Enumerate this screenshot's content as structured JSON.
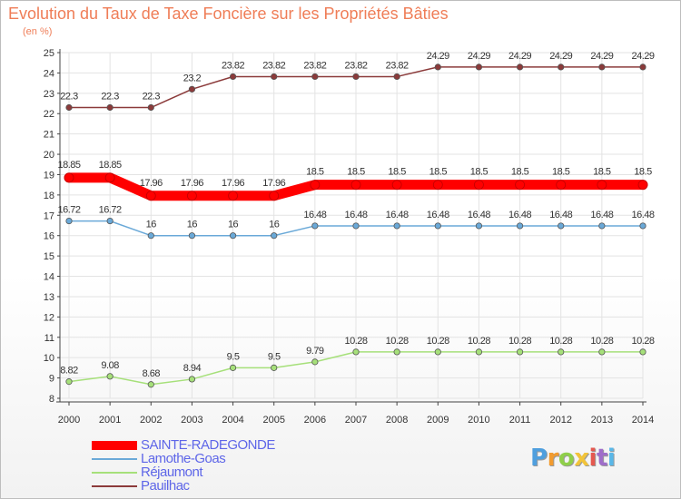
{
  "chart_data": {
    "type": "line",
    "title": "Evolution du Taux de Taxe Foncière sur les Propriétés Bâties",
    "unit_label": "(en %)",
    "x": [
      "2000",
      "2001",
      "2002",
      "2003",
      "2004",
      "2005",
      "2006",
      "2007",
      "2008",
      "2009",
      "2010",
      "2011",
      "2012",
      "2013",
      "2014"
    ],
    "ylim": [
      8,
      25
    ],
    "yticks": [
      "8",
      "9",
      "10",
      "11",
      "12",
      "13",
      "14",
      "15",
      "16",
      "17",
      "18",
      "19",
      "20",
      "21",
      "22",
      "23",
      "24",
      "25"
    ],
    "series": [
      {
        "name": "SAINTE-RADEGONDE",
        "color": "#ff0000",
        "values": [
          18.85,
          18.85,
          17.96,
          17.96,
          17.96,
          17.96,
          18.5,
          18.5,
          18.5,
          18.5,
          18.5,
          18.5,
          18.5,
          18.5,
          18.5
        ],
        "labels": [
          "18.85",
          "18.85",
          "17.96",
          "17.96",
          "17.96",
          "17.96",
          "18.5",
          "18.5",
          "18.5",
          "18.5",
          "18.5",
          "18.5",
          "18.5",
          "18.5",
          "18.5"
        ]
      },
      {
        "name": "Lamothe-Goas",
        "color": "#6aa9d8",
        "values": [
          16.72,
          16.72,
          16,
          16,
          16,
          16,
          16.48,
          16.48,
          16.48,
          16.48,
          16.48,
          16.48,
          16.48,
          16.48,
          16.48
        ],
        "labels": [
          "16.72",
          "16.72",
          "16",
          "16",
          "16",
          "16",
          "16.48",
          "16.48",
          "16.48",
          "16.48",
          "16.48",
          "16.48",
          "16.48",
          "16.48",
          "16.48"
        ]
      },
      {
        "name": "Réjaumont",
        "color": "#a6e07a",
        "values": [
          8.82,
          9.08,
          8.68,
          8.94,
          9.5,
          9.5,
          9.79,
          10.28,
          10.28,
          10.28,
          10.28,
          10.28,
          10.28,
          10.28,
          10.28
        ],
        "labels": [
          "8.82",
          "9.08",
          "8.68",
          "8.94",
          "9.5",
          "9.5",
          "9.79",
          "10.28",
          "10.28",
          "10.28",
          "10.28",
          "10.28",
          "10.28",
          "10.28",
          "10.28"
        ]
      },
      {
        "name": "Pauilhac",
        "color": "#8b3a3a",
        "values": [
          22.3,
          22.3,
          22.3,
          23.2,
          23.82,
          23.82,
          23.82,
          23.82,
          23.82,
          24.29,
          24.29,
          24.29,
          24.29,
          24.29,
          24.29
        ],
        "labels": [
          "22.3",
          "22.3",
          "22.3",
          "23.2",
          "23.82",
          "23.82",
          "23.82",
          "23.82",
          "23.82",
          "24.29",
          "24.29",
          "24.29",
          "24.29",
          "24.29",
          "24.29"
        ]
      }
    ]
  },
  "legend": {
    "items": [
      {
        "label": "SAINTE-RADEGONDE",
        "color": "#ff0000"
      },
      {
        "label": "Lamothe-Goas",
        "color": "#6aa9d8"
      },
      {
        "label": "Réjaumont",
        "color": "#a6e07a"
      },
      {
        "label": "Pauilhac",
        "color": "#8b3a3a"
      }
    ]
  },
  "brand": {
    "letters": [
      "P",
      "r",
      "o",
      "x",
      "i",
      "t",
      "i"
    ],
    "colors": [
      "#4f9fde",
      "#f29b2e",
      "#8fcf4a",
      "#f2c43a",
      "#e5584f",
      "#9f6ec9",
      "#59b7e8"
    ]
  }
}
